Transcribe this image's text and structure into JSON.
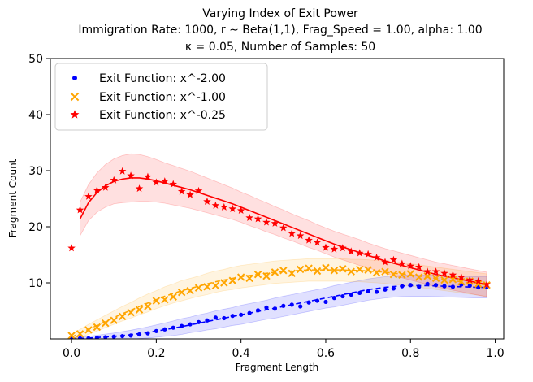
{
  "chart_data": {
    "type": "scatter",
    "title_lines": [
      "Varying Index of Exit Power",
      "Immigration Rate: 1000, r ∼ Beta(1,1), Frag_Speed = 1.00, alpha:  1.00",
      "κ =  0.05, Number of Samples: 50"
    ],
    "xlabel": "Fragment Length",
    "ylabel": "Fragment Count",
    "xlim": [
      -0.05,
      1.02
    ],
    "ylim": [
      0,
      50
    ],
    "x_ticks": [
      0.0,
      0.2,
      0.4,
      0.6,
      0.8,
      1.0
    ],
    "x_tick_labels": [
      "0.0",
      "0.2",
      "0.4",
      "0.6",
      "0.8",
      "1.0"
    ],
    "y_ticks": [
      10,
      20,
      30,
      40,
      50
    ],
    "y_tick_labels": [
      "10",
      "20",
      "30",
      "40",
      "50"
    ],
    "grid": false,
    "legend_position": "top-left",
    "x": [
      0.0,
      0.02,
      0.04,
      0.06,
      0.08,
      0.1,
      0.12,
      0.14,
      0.16,
      0.18,
      0.2,
      0.22,
      0.24,
      0.26,
      0.28,
      0.3,
      0.32,
      0.34,
      0.36,
      0.38,
      0.4,
      0.42,
      0.44,
      0.46,
      0.48,
      0.5,
      0.52,
      0.54,
      0.56,
      0.58,
      0.6,
      0.62,
      0.64,
      0.66,
      0.68,
      0.7,
      0.72,
      0.74,
      0.76,
      0.78,
      0.8,
      0.82,
      0.84,
      0.86,
      0.88,
      0.9,
      0.92,
      0.94,
      0.96,
      0.98
    ],
    "series": [
      {
        "name": "Exit Function: x^-2.00",
        "color": "#0000ff",
        "marker": "circle",
        "line_style": "dashed",
        "values": [
          0.1,
          0.1,
          0.1,
          0.2,
          0.3,
          0.4,
          0.5,
          0.6,
          0.8,
          1.0,
          1.4,
          1.7,
          2.0,
          2.3,
          2.6,
          3.0,
          3.3,
          3.8,
          3.7,
          4.1,
          4.3,
          4.6,
          5.1,
          5.6,
          5.4,
          5.9,
          6.1,
          5.8,
          6.5,
          6.8,
          6.6,
          7.3,
          7.6,
          7.9,
          8.2,
          8.5,
          8.4,
          8.8,
          9.0,
          9.4,
          9.6,
          9.3,
          9.8,
          9.6,
          9.4,
          9.3,
          9.7,
          9.5,
          9.2,
          9.3
        ],
        "fit": [
          0.05,
          0.1,
          0.15,
          0.25,
          0.35,
          0.45,
          0.6,
          0.75,
          0.95,
          1.15,
          1.4,
          1.65,
          1.9,
          2.2,
          2.5,
          2.8,
          3.1,
          3.4,
          3.7,
          4.0,
          4.3,
          4.6,
          4.9,
          5.2,
          5.5,
          5.8,
          6.1,
          6.4,
          6.7,
          7.0,
          7.3,
          7.6,
          7.9,
          8.2,
          8.5,
          8.8,
          9.0,
          9.2,
          9.35,
          9.45,
          9.5,
          9.5,
          9.5,
          9.45,
          9.4,
          9.35,
          9.3,
          9.25,
          9.2,
          9.2
        ],
        "band_halfwidth": [
          0.2,
          0.2,
          0.3,
          0.4,
          0.5,
          0.6,
          0.7,
          0.8,
          0.9,
          1.0,
          1.1,
          1.2,
          1.3,
          1.4,
          1.4,
          1.5,
          1.5,
          1.6,
          1.6,
          1.6,
          1.7,
          1.7,
          1.7,
          1.7,
          1.8,
          1.8,
          1.8,
          1.8,
          1.8,
          1.8,
          1.8,
          1.9,
          1.9,
          1.9,
          1.9,
          1.9,
          1.9,
          1.9,
          1.9,
          1.9,
          1.9,
          1.9,
          1.9,
          1.9,
          1.9,
          1.9,
          1.9,
          1.9,
          1.9,
          1.9
        ]
      },
      {
        "name": "Exit Function: x^-1.00",
        "color": "#ffa500",
        "marker": "x",
        "line_style": "dashed",
        "values": [
          0.6,
          0.9,
          1.6,
          2.1,
          2.8,
          3.3,
          4.0,
          4.7,
          5.2,
          5.8,
          6.8,
          7.0,
          7.5,
          8.3,
          8.6,
          9.1,
          9.3,
          9.5,
          10.0,
          10.4,
          11.0,
          10.8,
          11.5,
          11.2,
          11.9,
          12.2,
          11.7,
          12.4,
          12.6,
          12.1,
          12.7,
          12.2,
          12.5,
          12.0,
          12.4,
          12.3,
          11.8,
          12.0,
          11.5,
          11.4,
          11.6,
          11.0,
          11.2,
          10.8,
          10.5,
          10.6,
          10.2,
          10.3,
          9.8,
          9.6
        ],
        "fit": [
          0.3,
          1.0,
          1.7,
          2.4,
          3.1,
          3.8,
          4.5,
          5.1,
          5.8,
          6.4,
          7.0,
          7.6,
          8.1,
          8.6,
          9.0,
          9.4,
          9.8,
          10.2,
          10.5,
          10.8,
          11.1,
          11.3,
          11.5,
          11.7,
          11.9,
          12.0,
          12.1,
          12.2,
          12.3,
          12.3,
          12.3,
          12.3,
          12.3,
          12.2,
          12.2,
          12.1,
          12.0,
          11.9,
          11.7,
          11.6,
          11.4,
          11.2,
          11.0,
          10.8,
          10.6,
          10.4,
          10.2,
          10.0,
          9.8,
          9.6
        ],
        "band_halfwidth": [
          0.5,
          0.7,
          0.9,
          1.0,
          1.1,
          1.2,
          1.3,
          1.4,
          1.5,
          1.6,
          1.6,
          1.7,
          1.7,
          1.8,
          1.8,
          1.8,
          1.9,
          1.9,
          1.9,
          2.0,
          2.0,
          2.0,
          2.0,
          2.0,
          2.0,
          2.0,
          2.0,
          2.0,
          2.0,
          2.0,
          2.0,
          2.0,
          2.0,
          2.0,
          2.0,
          2.0,
          2.0,
          2.0,
          2.0,
          2.0,
          2.0,
          2.0,
          2.0,
          2.0,
          2.0,
          2.0,
          2.0,
          2.0,
          2.0,
          2.0
        ]
      },
      {
        "name": "Exit Function: x^-0.25",
        "color": "#ff0000",
        "marker": "star",
        "line_style": "solid",
        "values": [
          16.2,
          23.0,
          25.4,
          26.5,
          27.0,
          28.3,
          29.9,
          29.1,
          26.8,
          28.9,
          27.9,
          28.1,
          27.6,
          26.3,
          25.7,
          26.4,
          24.5,
          23.8,
          23.5,
          23.2,
          22.9,
          21.6,
          21.4,
          20.8,
          20.6,
          19.8,
          18.8,
          18.4,
          17.6,
          17.2,
          16.3,
          16.0,
          16.2,
          15.6,
          15.3,
          15.1,
          14.5,
          13.7,
          14.1,
          13.4,
          13.0,
          12.8,
          12.0,
          12.0,
          11.7,
          11.4,
          11.0,
          10.5,
          10.3,
          9.7
        ],
        "fit": [
          null,
          21.4,
          24.3,
          26.1,
          27.3,
          28.1,
          28.5,
          28.7,
          28.7,
          28.5,
          28.2,
          27.8,
          27.4,
          27.0,
          26.6,
          26.1,
          25.6,
          25.1,
          24.6,
          24.1,
          23.5,
          22.9,
          22.3,
          21.7,
          21.1,
          20.5,
          19.9,
          19.3,
          18.7,
          18.1,
          17.5,
          16.9,
          16.4,
          15.9,
          15.4,
          14.9,
          14.4,
          13.9,
          13.5,
          13.1,
          12.7,
          12.3,
          11.9,
          11.5,
          11.2,
          10.9,
          10.6,
          10.3,
          10.0,
          9.7
        ],
        "band_halfwidth": [
          3.0,
          3.0,
          3.2,
          3.5,
          3.8,
          4.0,
          4.2,
          4.3,
          4.2,
          4.0,
          3.8,
          3.6,
          3.5,
          3.4,
          3.3,
          3.2,
          3.1,
          3.0,
          2.9,
          2.8,
          2.7,
          2.7,
          2.6,
          2.6,
          2.5,
          2.5,
          2.4,
          2.4,
          2.4,
          2.3,
          2.3,
          2.3,
          2.3,
          2.3,
          2.3,
          2.2,
          2.2,
          2.2,
          2.2,
          2.2,
          2.2,
          2.2,
          2.2,
          2.2,
          2.2,
          2.2,
          2.2,
          2.2,
          2.2,
          2.2
        ]
      }
    ]
  }
}
